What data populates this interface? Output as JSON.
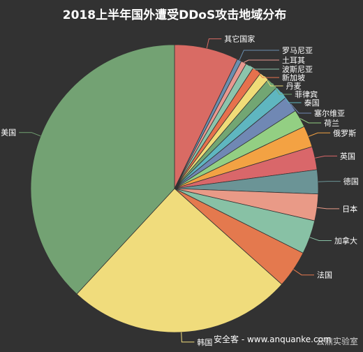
{
  "chart_data": {
    "type": "pie",
    "title": "2018上半年国外遭受DDoS攻击地域分布",
    "slices": [
      {
        "name": "其它国家",
        "value": 7.2,
        "color": "#d96b64"
      },
      {
        "name": "罗马尼亚",
        "value": 0.5,
        "color": "#6b8fb0"
      },
      {
        "name": "土耳其",
        "value": 0.6,
        "color": "#e89890"
      },
      {
        "name": "波斯尼亚",
        "value": 0.9,
        "color": "#8cc4ac"
      },
      {
        "name": "新加坡",
        "value": 1.0,
        "color": "#e6714d"
      },
      {
        "name": "丹麦",
        "value": 1.1,
        "color": "#f0dc78"
      },
      {
        "name": "菲律宾",
        "value": 1.3,
        "color": "#72a673"
      },
      {
        "name": "泰国",
        "value": 1.5,
        "color": "#5fb6c0"
      },
      {
        "name": "塞尔维亚",
        "value": 1.8,
        "color": "#7088b4"
      },
      {
        "name": "荷兰",
        "value": 2.0,
        "color": "#93cf83"
      },
      {
        "name": "俄罗斯",
        "value": 2.4,
        "color": "#f3a243"
      },
      {
        "name": "英国",
        "value": 2.6,
        "color": "#d9676a"
      },
      {
        "name": "德国",
        "value": 2.7,
        "color": "#6b9496"
      },
      {
        "name": "日本",
        "value": 3.0,
        "color": "#e99a87"
      },
      {
        "name": "加拿大",
        "value": 3.8,
        "color": "#88c1a5"
      },
      {
        "name": "法国",
        "value": 4.2,
        "color": "#e4794e"
      },
      {
        "name": "韩国",
        "value": 25.3,
        "color": "#f0dc7c"
      },
      {
        "name": "美国",
        "value": 38.1,
        "color": "#73a273"
      }
    ]
  },
  "watermark": {
    "text": "安全客 - www.anquanke.com",
    "secondary": "云鼎实验室"
  }
}
